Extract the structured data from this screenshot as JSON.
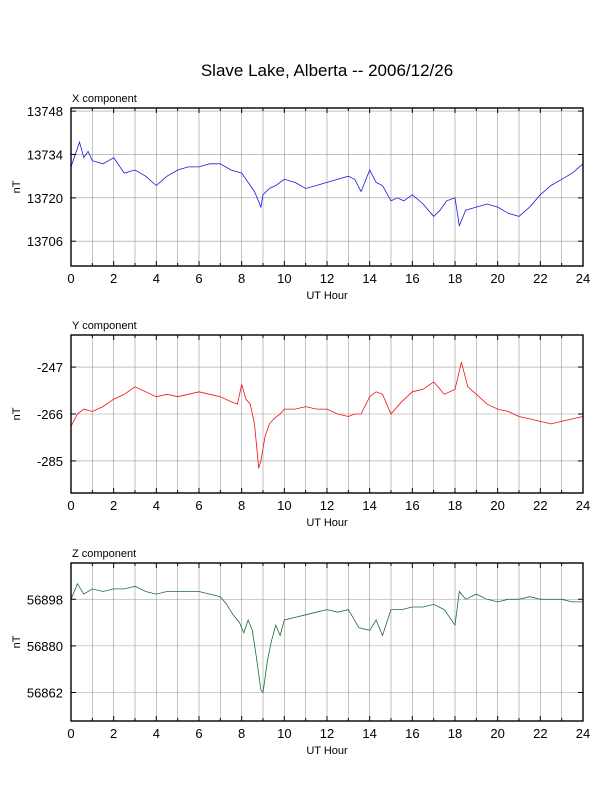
{
  "title": "Slave Lake, Alberta -- 2006/12/26",
  "chart_data": [
    {
      "type": "line",
      "label": "X component",
      "xlabel": "UT Hour",
      "ylabel": "nT",
      "xlim": [
        0,
        24
      ],
      "ylim": [
        13698,
        13749
      ],
      "xticks": [
        0,
        2,
        4,
        6,
        8,
        10,
        12,
        14,
        16,
        18,
        20,
        22,
        24
      ],
      "yticks": [
        13706,
        13720,
        13734,
        13748
      ],
      "grid": true,
      "color": "#1a1adc",
      "series": [
        {
          "x": [
            0,
            0.2,
            0.4,
            0.6,
            0.8,
            1,
            1.5,
            2,
            2.5,
            3,
            3.5,
            4,
            4.5,
            5,
            5.5,
            6,
            6.5,
            7,
            7.5,
            8,
            8.3,
            8.6,
            8.9,
            9,
            9.3,
            9.6,
            10,
            10.5,
            11,
            11.5,
            12,
            12.5,
            13,
            13.3,
            13.6,
            14,
            14.3,
            14.6,
            15,
            15.3,
            15.6,
            16,
            16.5,
            17,
            17.3,
            17.6,
            18,
            18.2,
            18.5,
            19,
            19.5,
            20,
            20.5,
            21,
            21.5,
            22,
            22.5,
            23,
            23.5,
            24
          ],
          "y": [
            13730,
            13734,
            13738,
            13733,
            13735,
            13732,
            13731,
            13733,
            13728,
            13729,
            13727,
            13724,
            13727,
            13729,
            13730,
            13730,
            13731,
            13731,
            13729,
            13728,
            13725,
            13722,
            13717,
            13721,
            13723,
            13724,
            13726,
            13725,
            13723,
            13724,
            13725,
            13726,
            13727,
            13726,
            13722,
            13729,
            13725,
            13724,
            13719,
            13720,
            13719,
            13721,
            13718,
            13714,
            13716,
            13719,
            13720,
            13711,
            13716,
            13717,
            13718,
            13717,
            13715,
            13714,
            13717,
            13721,
            13724,
            13726,
            13728,
            13731
          ]
        }
      ]
    },
    {
      "type": "line",
      "label": "Y component",
      "xlabel": "UT Hour",
      "ylabel": "nT",
      "xlim": [
        0,
        24
      ],
      "ylim": [
        -298,
        -234
      ],
      "xticks": [
        0,
        2,
        4,
        6,
        8,
        10,
        12,
        14,
        16,
        18,
        20,
        22,
        24
      ],
      "yticks": [
        -285,
        -266,
        -247
      ],
      "grid": true,
      "color": "#ee1111",
      "series": [
        {
          "x": [
            0,
            0.3,
            0.6,
            1,
            1.5,
            2,
            2.5,
            3,
            3.5,
            4,
            4.5,
            5,
            5.5,
            6,
            6.5,
            7,
            7.5,
            7.8,
            8,
            8.2,
            8.4,
            8.6,
            8.8,
            8.9,
            9.1,
            9.3,
            9.5,
            9.8,
            10,
            10.5,
            11,
            11.5,
            12,
            12.5,
            13,
            13.3,
            13.6,
            14,
            14.3,
            14.6,
            15,
            15.5,
            16,
            16.5,
            17,
            17.5,
            18,
            18.3,
            18.6,
            19,
            19.5,
            20,
            20.5,
            21,
            21.5,
            22,
            22.5,
            23,
            23.5,
            24
          ],
          "y": [
            -271,
            -266,
            -264,
            -265,
            -263,
            -260,
            -258,
            -255,
            -257,
            -259,
            -258,
            -259,
            -258,
            -257,
            -258,
            -259,
            -261,
            -262,
            -254,
            -260,
            -262,
            -270,
            -288,
            -285,
            -275,
            -270,
            -268,
            -266,
            -264,
            -264,
            -263,
            -264,
            -264,
            -266,
            -267,
            -266,
            -266,
            -259,
            -257,
            -258,
            -266,
            -261,
            -257,
            -256,
            -253,
            -258,
            -256,
            -245,
            -255,
            -258,
            -262,
            -264,
            -265,
            -267,
            -268,
            -269,
            -270,
            -269,
            -268,
            -267
          ]
        }
      ]
    },
    {
      "type": "line",
      "label": "Z component",
      "xlabel": "UT Hour",
      "ylabel": "nT",
      "xlim": [
        0,
        24
      ],
      "ylim": [
        56851,
        56912
      ],
      "xticks": [
        0,
        2,
        4,
        6,
        8,
        10,
        12,
        14,
        16,
        18,
        20,
        22,
        24
      ],
      "yticks": [
        56862,
        56880,
        56898
      ],
      "grid": true,
      "color": "#1f6b3a",
      "series": [
        {
          "x": [
            0,
            0.3,
            0.6,
            1,
            1.5,
            2,
            2.5,
            3,
            3.5,
            4,
            4.5,
            5,
            5.5,
            6,
            6.5,
            7,
            7.3,
            7.6,
            7.9,
            8.1,
            8.3,
            8.5,
            8.7,
            8.9,
            9,
            9.2,
            9.4,
            9.6,
            9.8,
            10,
            10.5,
            11,
            11.5,
            12,
            12.5,
            13,
            13.5,
            14,
            14.3,
            14.6,
            15,
            15.5,
            16,
            16.5,
            17,
            17.5,
            18,
            18.2,
            18.5,
            19,
            19.5,
            20,
            20.5,
            21,
            21.5,
            22,
            22.5,
            23,
            23.5,
            24
          ],
          "y": [
            56898,
            56904,
            56900,
            56902,
            56901,
            56902,
            56902,
            56903,
            56901,
            56900,
            56901,
            56901,
            56901,
            56901,
            56900,
            56899,
            56896,
            56892,
            56889,
            56885,
            56890,
            56886,
            56875,
            56863,
            56862,
            56874,
            56882,
            56888,
            56884,
            56890,
            56891,
            56892,
            56893,
            56894,
            56893,
            56894,
            56887,
            56886,
            56890,
            56884,
            56894,
            56894,
            56895,
            56895,
            56896,
            56894,
            56888,
            56901,
            56898,
            56900,
            56898,
            56897,
            56898,
            56898,
            56899,
            56898,
            56898,
            56898,
            56897,
            56897
          ]
        }
      ]
    }
  ]
}
